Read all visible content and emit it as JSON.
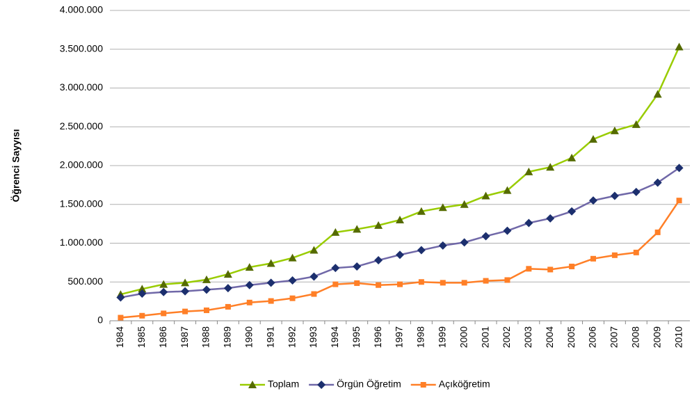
{
  "chart_data": {
    "type": "line",
    "ylabel": "Öğrenci Sayyısı",
    "categories": [
      "1984",
      "1985",
      "1986",
      "1987",
      "1988",
      "1989",
      "1990",
      "1991",
      "1992",
      "1993",
      "1994",
      "1995",
      "1996",
      "1997",
      "1998",
      "1999",
      "2000",
      "2001",
      "2002",
      "2003",
      "2004",
      "2005",
      "2006",
      "2007",
      "2008",
      "2009",
      "2010"
    ],
    "series": [
      {
        "name": "Toplam",
        "color": "#99cc00",
        "marker": "triangle",
        "values": [
          340000,
          410000,
          470000,
          490000,
          530000,
          600000,
          690000,
          740000,
          810000,
          910000,
          1140000,
          1180000,
          1230000,
          1300000,
          1410000,
          1460000,
          1500000,
          1610000,
          1680000,
          1920000,
          1980000,
          2100000,
          2340000,
          2450000,
          2530000,
          2920000,
          3530000
        ]
      },
      {
        "name": "Örgün Öğretim",
        "color": "#1c2f6e",
        "marker": "diamond",
        "values": [
          300000,
          350000,
          370000,
          380000,
          400000,
          420000,
          460000,
          490000,
          520000,
          570000,
          680000,
          700000,
          780000,
          850000,
          910000,
          970000,
          1010000,
          1090000,
          1160000,
          1260000,
          1320000,
          1410000,
          1550000,
          1610000,
          1660000,
          1780000,
          1970000
        ]
      },
      {
        "name": "Açıköğretim",
        "color": "#ff7f27",
        "marker": "square",
        "values": [
          40000,
          65000,
          95000,
          120000,
          135000,
          180000,
          235000,
          255000,
          290000,
          345000,
          470000,
          485000,
          460000,
          470000,
          500000,
          490000,
          490000,
          515000,
          525000,
          670000,
          660000,
          700000,
          800000,
          845000,
          880000,
          1140000,
          1550000
        ]
      }
    ],
    "ylim": [
      0,
      4000000
    ],
    "yticks": [
      0,
      {
        "value": 500000,
        "label": "500.000"
      },
      {
        "value": 1000000,
        "label": "1.000.000"
      },
      {
        "value": 1500000,
        "label": "1.500.000"
      },
      {
        "value": 2000000,
        "label": "2.000.000"
      },
      {
        "value": 2500000,
        "label": "2.500.000"
      },
      {
        "value": 3000000,
        "label": "3.000.000"
      },
      {
        "value": 3500000,
        "label": "3.500.000"
      },
      {
        "value": 4000000,
        "label": "4.000.000"
      }
    ],
    "grid": true,
    "legend": "bottom"
  }
}
